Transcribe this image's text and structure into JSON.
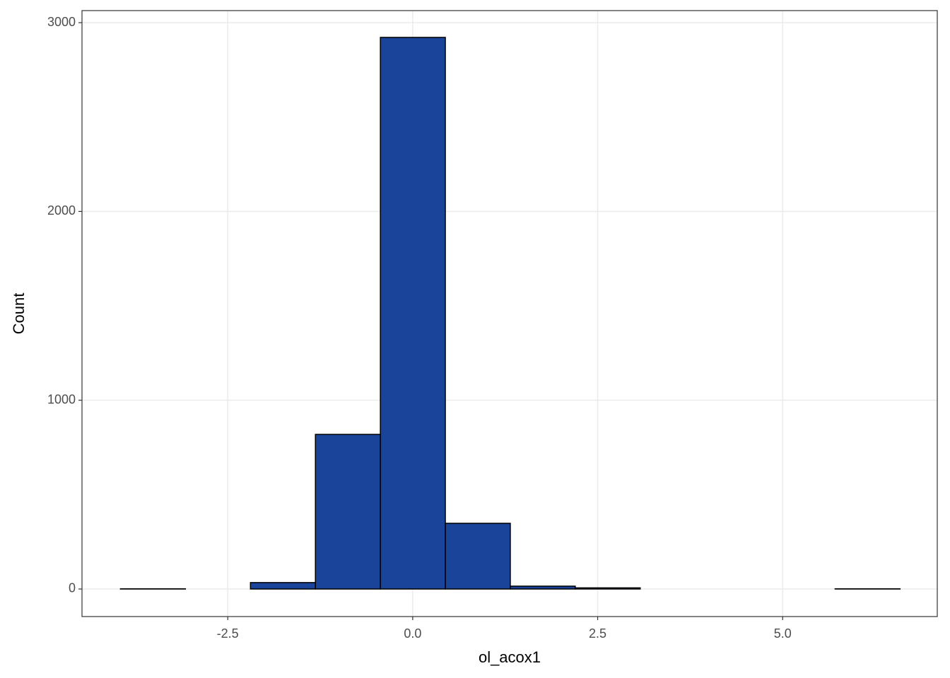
{
  "chart_data": {
    "type": "histogram",
    "x_label": "ol_acox1",
    "y_label": "Count",
    "bins": [
      -3.95,
      -3.072,
      -2.193,
      -1.315,
      -0.437,
      0.441,
      1.319,
      2.197,
      3.075,
      3.953,
      4.831,
      5.709,
      6.587
    ],
    "values": [
      1,
      0,
      34,
      819,
      2922,
      348,
      15,
      6,
      0,
      0,
      0,
      1
    ],
    "color": "#1a4499",
    "edge_color": "#000000",
    "xlim": [
      -4.47,
      7.09
    ],
    "ylim": [
      -146,
      3064
    ],
    "xticks": [
      -2.5,
      {
        "value": 0,
        "label": "0.0"
      },
      2.5,
      {
        "value": 5,
        "label": "5.0"
      }
    ],
    "yticks": [
      0,
      1000,
      2000,
      3000
    ],
    "grid": true
  }
}
